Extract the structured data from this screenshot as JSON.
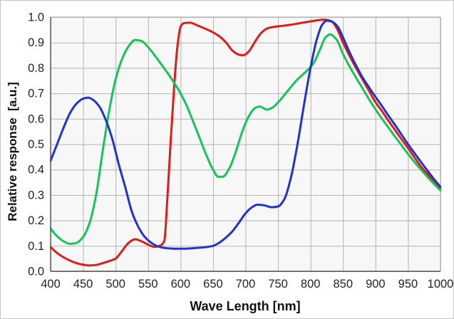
{
  "figure": {
    "background": "#ffffff",
    "border_color": "#c4c4c4"
  },
  "chart_data": {
    "type": "line",
    "title": "",
    "xlabel": "Wave Length [nm]",
    "ylabel": "Relative response  [a.u.]",
    "xlim": [
      400,
      1000
    ],
    "ylim": [
      0.0,
      1.0
    ],
    "grid": true,
    "legend": "none",
    "grid_color": "#b3b3b3",
    "axis_color": "#555555",
    "box_color": "#b3b3b3",
    "plot_background": "#f7f7f7",
    "tick_label_color": "#222222",
    "x_tick_labels": [
      "400",
      "450",
      "500",
      "550",
      "600",
      "650",
      "700",
      "750",
      "800",
      "850",
      "900",
      "950",
      "1000"
    ],
    "x_ticks": [
      400,
      450,
      500,
      550,
      600,
      650,
      700,
      750,
      800,
      850,
      900,
      950,
      1000
    ],
    "y_tick_labels": [
      "0.0",
      "0.1",
      "0.2",
      "0.3",
      "0.4",
      "0.5",
      "0.6",
      "0.7",
      "0.8",
      "0.9",
      "1.0"
    ],
    "y_ticks": [
      0.0,
      0.1,
      0.2,
      0.3,
      0.4,
      0.5,
      0.6,
      0.7,
      0.8,
      0.9,
      1.0
    ],
    "series": [
      {
        "name": "red-channel",
        "color": "#dd1c1c",
        "points": [
          [
            400,
            0.095
          ],
          [
            410,
            0.072
          ],
          [
            420,
            0.055
          ],
          [
            430,
            0.042
          ],
          [
            440,
            0.032
          ],
          [
            450,
            0.026
          ],
          [
            460,
            0.023
          ],
          [
            470,
            0.025
          ],
          [
            480,
            0.032
          ],
          [
            490,
            0.04
          ],
          [
            500,
            0.05
          ],
          [
            510,
            0.08
          ],
          [
            520,
            0.112
          ],
          [
            530,
            0.126
          ],
          [
            540,
            0.118
          ],
          [
            550,
            0.105
          ],
          [
            560,
            0.096
          ],
          [
            570,
            0.103
          ],
          [
            575,
            0.12
          ],
          [
            580,
            0.3
          ],
          [
            585,
            0.52
          ],
          [
            590,
            0.72
          ],
          [
            595,
            0.88
          ],
          [
            600,
            0.962
          ],
          [
            605,
            0.976
          ],
          [
            615,
            0.978
          ],
          [
            625,
            0.968
          ],
          [
            640,
            0.952
          ],
          [
            650,
            0.94
          ],
          [
            660,
            0.924
          ],
          [
            670,
            0.9
          ],
          [
            680,
            0.868
          ],
          [
            690,
            0.852
          ],
          [
            697,
            0.85
          ],
          [
            705,
            0.865
          ],
          [
            715,
            0.905
          ],
          [
            725,
            0.94
          ],
          [
            735,
            0.957
          ],
          [
            745,
            0.962
          ],
          [
            755,
            0.965
          ],
          [
            770,
            0.97
          ],
          [
            785,
            0.977
          ],
          [
            800,
            0.983
          ],
          [
            810,
            0.987
          ],
          [
            820,
            0.99
          ],
          [
            832,
            0.984
          ],
          [
            840,
            0.958
          ],
          [
            850,
            0.9
          ],
          [
            860,
            0.848
          ],
          [
            870,
            0.8
          ],
          [
            880,
            0.755
          ],
          [
            890,
            0.71
          ],
          [
            900,
            0.665
          ],
          [
            910,
            0.63
          ],
          [
            920,
            0.592
          ],
          [
            930,
            0.556
          ],
          [
            940,
            0.52
          ],
          [
            950,
            0.485
          ],
          [
            960,
            0.448
          ],
          [
            970,
            0.412
          ],
          [
            980,
            0.382
          ],
          [
            990,
            0.354
          ],
          [
            1000,
            0.327
          ]
        ]
      },
      {
        "name": "green-channel",
        "color": "#16c45a",
        "points": [
          [
            400,
            0.168
          ],
          [
            410,
            0.138
          ],
          [
            420,
            0.118
          ],
          [
            430,
            0.108
          ],
          [
            440,
            0.112
          ],
          [
            450,
            0.135
          ],
          [
            460,
            0.19
          ],
          [
            470,
            0.3
          ],
          [
            480,
            0.47
          ],
          [
            490,
            0.63
          ],
          [
            500,
            0.755
          ],
          [
            510,
            0.835
          ],
          [
            520,
            0.885
          ],
          [
            530,
            0.91
          ],
          [
            540,
            0.906
          ],
          [
            550,
            0.882
          ],
          [
            560,
            0.85
          ],
          [
            570,
            0.815
          ],
          [
            580,
            0.78
          ],
          [
            590,
            0.742
          ],
          [
            600,
            0.7
          ],
          [
            610,
            0.648
          ],
          [
            620,
            0.585
          ],
          [
            630,
            0.52
          ],
          [
            640,
            0.455
          ],
          [
            650,
            0.4
          ],
          [
            658,
            0.372
          ],
          [
            665,
            0.372
          ],
          [
            675,
            0.405
          ],
          [
            685,
            0.47
          ],
          [
            695,
            0.55
          ],
          [
            705,
            0.61
          ],
          [
            715,
            0.643
          ],
          [
            722,
            0.648
          ],
          [
            733,
            0.636
          ],
          [
            742,
            0.645
          ],
          [
            752,
            0.67
          ],
          [
            765,
            0.71
          ],
          [
            780,
            0.755
          ],
          [
            795,
            0.79
          ],
          [
            805,
            0.82
          ],
          [
            815,
            0.875
          ],
          [
            823,
            0.92
          ],
          [
            830,
            0.932
          ],
          [
            840,
            0.912
          ],
          [
            850,
            0.855
          ],
          [
            860,
            0.806
          ],
          [
            870,
            0.762
          ],
          [
            880,
            0.72
          ],
          [
            890,
            0.677
          ],
          [
            900,
            0.637
          ],
          [
            910,
            0.6
          ],
          [
            920,
            0.565
          ],
          [
            930,
            0.53
          ],
          [
            940,
            0.496
          ],
          [
            950,
            0.462
          ],
          [
            960,
            0.43
          ],
          [
            970,
            0.4
          ],
          [
            980,
            0.371
          ],
          [
            990,
            0.344
          ],
          [
            1000,
            0.318
          ]
        ]
      },
      {
        "name": "blue-channel",
        "color": "#2233cc",
        "points": [
          [
            400,
            0.435
          ],
          [
            410,
            0.5
          ],
          [
            420,
            0.565
          ],
          [
            430,
            0.623
          ],
          [
            440,
            0.66
          ],
          [
            450,
            0.679
          ],
          [
            458,
            0.683
          ],
          [
            465,
            0.675
          ],
          [
            475,
            0.648
          ],
          [
            485,
            0.595
          ],
          [
            495,
            0.52
          ],
          [
            505,
            0.42
          ],
          [
            515,
            0.33
          ],
          [
            525,
            0.235
          ],
          [
            535,
            0.175
          ],
          [
            545,
            0.135
          ],
          [
            555,
            0.112
          ],
          [
            565,
            0.098
          ],
          [
            575,
            0.092
          ],
          [
            590,
            0.089
          ],
          [
            605,
            0.089
          ],
          [
            620,
            0.091
          ],
          [
            635,
            0.094
          ],
          [
            650,
            0.1
          ],
          [
            660,
            0.113
          ],
          [
            670,
            0.133
          ],
          [
            680,
            0.158
          ],
          [
            690,
            0.192
          ],
          [
            700,
            0.228
          ],
          [
            710,
            0.252
          ],
          [
            718,
            0.262
          ],
          [
            728,
            0.26
          ],
          [
            740,
            0.252
          ],
          [
            750,
            0.255
          ],
          [
            760,
            0.285
          ],
          [
            770,
            0.37
          ],
          [
            780,
            0.5
          ],
          [
            790,
            0.655
          ],
          [
            800,
            0.8
          ],
          [
            810,
            0.915
          ],
          [
            818,
            0.97
          ],
          [
            825,
            0.986
          ],
          [
            833,
            0.982
          ],
          [
            842,
            0.962
          ],
          [
            850,
            0.92
          ],
          [
            860,
            0.862
          ],
          [
            870,
            0.81
          ],
          [
            880,
            0.763
          ],
          [
            890,
            0.724
          ],
          [
            900,
            0.686
          ],
          [
            910,
            0.65
          ],
          [
            920,
            0.612
          ],
          [
            930,
            0.576
          ],
          [
            940,
            0.538
          ],
          [
            950,
            0.5
          ],
          [
            960,
            0.465
          ],
          [
            970,
            0.43
          ],
          [
            980,
            0.396
          ],
          [
            990,
            0.363
          ],
          [
            1000,
            0.332
          ]
        ]
      }
    ]
  }
}
